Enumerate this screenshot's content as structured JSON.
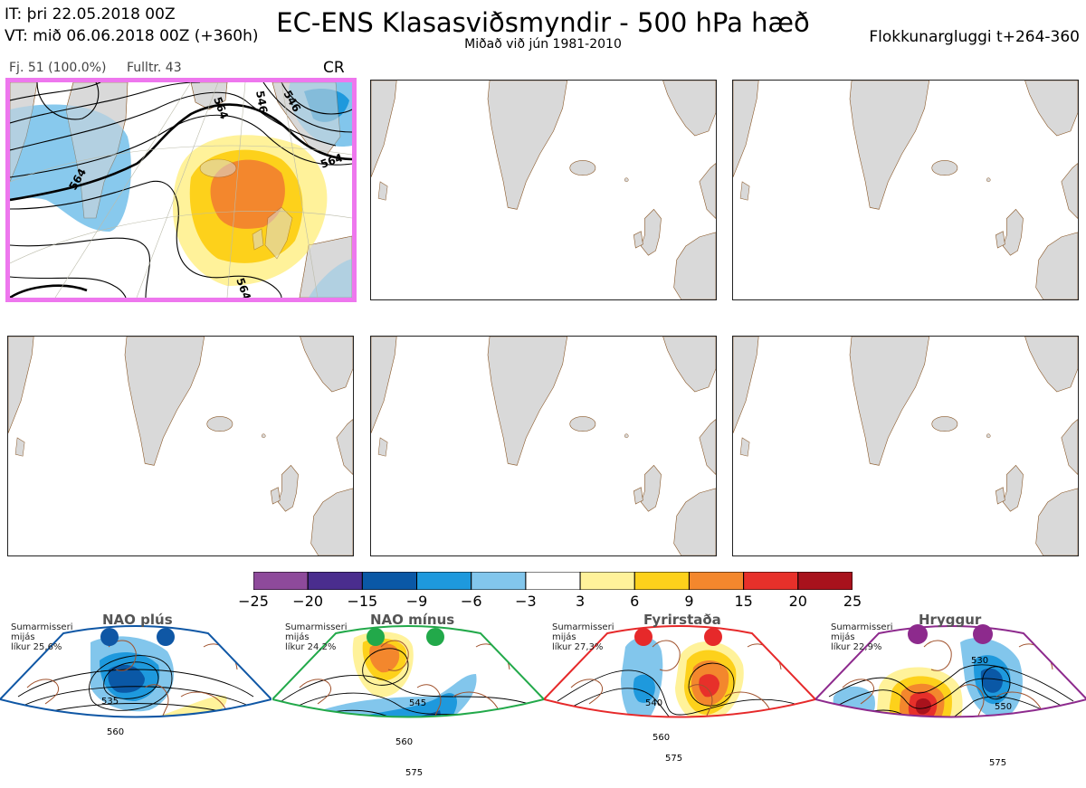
{
  "header": {
    "it_line": "IT: þri 22.05.2018 00Z",
    "vt_line": "VT: mið 06.06.2018 00Z  (+360h)",
    "title": "EC-ENS Klasasviðsmyndir - 500 hPa hæð",
    "subtitle": "Miðað við jún 1981-2010",
    "window": "Flokkunargluggi t+264-360"
  },
  "panel1": {
    "members": "Fj. 51 (100.0%)",
    "representative": "Fulltr. 43",
    "cluster_code": "CR",
    "contour_labels": [
      "564",
      "564",
      "564",
      "546",
      "546",
      "564",
      "564"
    ]
  },
  "colorbar": {
    "ticks": [
      "−25",
      "−20",
      "−15",
      "−9",
      "−6",
      "−3",
      "3",
      "6",
      "9",
      "15",
      "20",
      "25"
    ],
    "colors": [
      "#8e4a9b",
      "#4a2d8e",
      "#0a58a6",
      "#1e99dd",
      "#82c6ec",
      "#ffffff",
      "#fff29a",
      "#fdd11b",
      "#f3872d",
      "#e7302a",
      "#a8121c"
    ]
  },
  "regimes": [
    {
      "name": "NAO plús",
      "season": "Sumarmisseri",
      "base": "mijás",
      "prob": "líkur 25,6%",
      "color": "#0f57a5",
      "labels": [
        "535",
        "560"
      ]
    },
    {
      "name": "NAO mínus",
      "season": "Sumarmisseri",
      "base": "mijás",
      "prob": "líkur 24,2%",
      "color": "#22a94a",
      "labels": [
        "545",
        "560",
        "575"
      ]
    },
    {
      "name": "Fyrirstaða",
      "season": "Sumarmisseri",
      "base": "mijás",
      "prob": "líkur 27,3%",
      "color": "#e6292a",
      "labels": [
        "540",
        "560",
        "575"
      ]
    },
    {
      "name": "Hryggur",
      "season": "Sumarmisseri",
      "base": "mijás",
      "prob": "líkur 22,9%",
      "color": "#8d2a8d",
      "labels": [
        "530",
        "550",
        "575"
      ]
    }
  ]
}
